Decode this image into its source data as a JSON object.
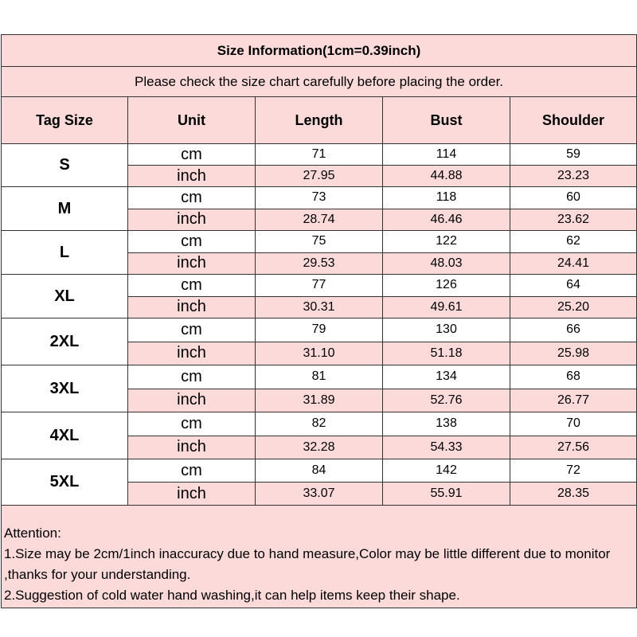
{
  "title": "Size Information(1cm=0.39inch)",
  "subtitle": "Please check the size chart carefully before placing the order.",
  "headers": [
    "Tag Size",
    "Unit",
    "Length",
    "Bust",
    "Shoulder"
  ],
  "rows": [
    {
      "size": "S",
      "cm": [
        "71",
        "114",
        "59"
      ],
      "inch": [
        "27.95",
        "44.88",
        "23.23"
      ]
    },
    {
      "size": "M",
      "cm": [
        "73",
        "118",
        "60"
      ],
      "inch": [
        "28.74",
        "46.46",
        "23.62"
      ]
    },
    {
      "size": "L",
      "cm": [
        "75",
        "122",
        "62"
      ],
      "inch": [
        "29.53",
        "48.03",
        "24.41"
      ]
    },
    {
      "size": "XL",
      "cm": [
        "77",
        "126",
        "64"
      ],
      "inch": [
        "30.31",
        "49.61",
        "25.20"
      ]
    },
    {
      "size": "2XL",
      "cm": [
        "79",
        "130",
        "66"
      ],
      "inch": [
        "31.10",
        "51.18",
        "25.98"
      ]
    },
    {
      "size": "3XL",
      "cm": [
        "81",
        "134",
        "68"
      ],
      "inch": [
        "31.89",
        "52.76",
        "26.77"
      ]
    },
    {
      "size": "4XL",
      "cm": [
        "82",
        "138",
        "70"
      ],
      "inch": [
        "32.28",
        "54.33",
        "27.56"
      ]
    },
    {
      "size": "5XL",
      "cm": [
        "84",
        "142",
        "72"
      ],
      "inch": [
        "33.07",
        "55.91",
        "28.35"
      ]
    }
  ],
  "units": {
    "cm": "cm",
    "inch": "inch"
  },
  "attention": {
    "heading": "Attention:",
    "lines": [
      "1.Size may be 2cm/1inch inaccuracy due to hand measure,Color may be little different due to monitor ,thanks for your understanding.",
      "2.Suggestion of cold water hand washing,it can help items keep their shape."
    ]
  },
  "colors": {
    "pink": "#fcdada",
    "border": "#333333"
  }
}
